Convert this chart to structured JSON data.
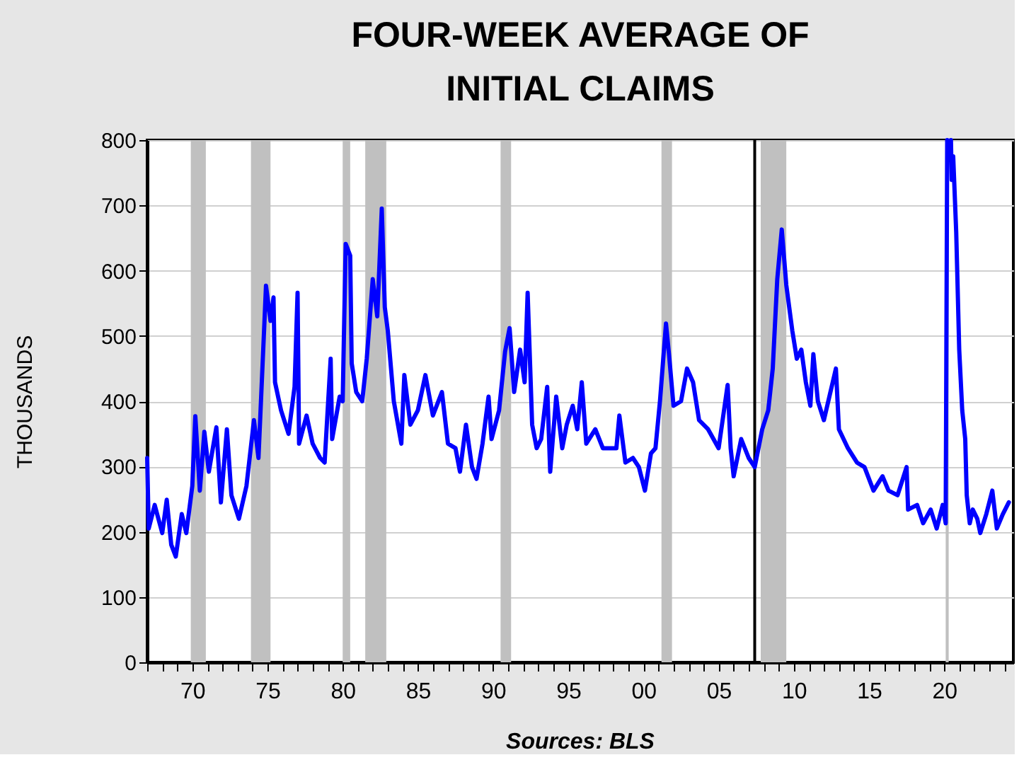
{
  "chart_data": {
    "type": "line",
    "title": "FOUR-WEEK AVERAGE OF\nINITIAL CLAIMS",
    "ylabel": "THOUSANDS",
    "annotations": [
      "Sources:  BLS"
    ],
    "x": [
      1967.0,
      1967.1,
      1967.5,
      1968.0,
      1968.3,
      1968.6,
      1968.9,
      1969.3,
      1969.6,
      1970.0,
      1970.2,
      1970.5,
      1970.8,
      1971.1,
      1971.6,
      1971.9,
      1972.3,
      1972.6,
      1973.1,
      1973.6,
      1974.1,
      1974.4,
      1974.8,
      1974.9,
      1975.2,
      1975.4,
      1975.5,
      1975.9,
      1976.4,
      1976.8,
      1977.0,
      1977.1,
      1977.6,
      1978.0,
      1978.5,
      1978.8,
      1979.2,
      1979.3,
      1979.8,
      1980.0,
      1980.2,
      1980.5,
      1980.6,
      1980.9,
      1981.3,
      1981.6,
      1982.0,
      1982.3,
      1982.6,
      1982.8,
      1983.0,
      1983.4,
      1983.9,
      1984.1,
      1984.5,
      1985.0,
      1985.5,
      1986.0,
      1986.6,
      1987.0,
      1987.5,
      1987.8,
      1988.2,
      1988.6,
      1988.9,
      1989.3,
      1989.7,
      1989.9,
      1990.4,
      1990.8,
      1991.1,
      1991.4,
      1991.8,
      1992.1,
      1992.3,
      1992.6,
      1992.9,
      1993.2,
      1993.6,
      1993.8,
      1994.2,
      1994.6,
      1994.9,
      1995.3,
      1995.6,
      1995.9,
      1996.2,
      1996.8,
      1997.3,
      1997.8,
      1998.2,
      1998.4,
      1998.8,
      1999.3,
      1999.7,
      2000.1,
      2000.5,
      2000.8,
      2001.1,
      2001.5,
      2001.7,
      2002.0,
      2002.5,
      2002.9,
      2003.3,
      2003.7,
      2004.3,
      2005.0,
      2005.6,
      2005.8,
      2006.0,
      2006.5,
      2007.0,
      2007.4,
      2007.9,
      2008.3,
      2008.6,
      2008.9,
      2009.2,
      2009.5,
      2009.9,
      2010.2,
      2010.5,
      2010.8,
      2011.1,
      2011.3,
      2011.6,
      2012.0,
      2012.8,
      2013.0,
      2013.6,
      2014.2,
      2014.7,
      2015.3,
      2015.9,
      2016.3,
      2016.9,
      2017.5,
      2017.6,
      2018.2,
      2018.6,
      2019.1,
      2019.5,
      2019.9,
      2020.1,
      2020.2,
      2020.3,
      2020.45,
      2020.5,
      2020.6,
      2020.8,
      2021.0,
      2021.2,
      2021.4,
      2021.5,
      2021.7,
      2021.9,
      2022.2,
      2022.4,
      2022.8,
      2023.2,
      2023.5,
      2023.9,
      2024.3
    ],
    "series": [
      {
        "color": "#0000ff",
        "values": [
          313,
          205,
          241,
          198,
          249,
          180,
          162,
          227,
          198,
          270,
          377,
          263,
          353,
          292,
          360,
          245,
          357,
          256,
          220,
          270,
          371,
          313,
          523,
          577,
          523,
          559,
          429,
          386,
          350,
          422,
          566,
          335,
          378,
          335,
          313,
          306,
          465,
          342,
          407,
          400,
          641,
          623,
          458,
          414,
          400,
          465,
          587,
          530,
          695,
          544,
          508,
          400,
          335,
          440,
          364,
          386,
          440,
          378,
          414,
          335,
          328,
          292,
          364,
          299,
          281,
          335,
          407,
          342,
          386,
          476,
          512,
          414,
          479,
          429,
          566,
          364,
          328,
          342,
          422,
          292,
          407,
          328,
          364,
          393,
          357,
          429,
          335,
          357,
          328,
          328,
          328,
          378,
          306,
          313,
          299,
          263,
          320,
          328,
          400,
          519,
          472,
          393,
          400,
          450,
          429,
          371,
          357,
          328,
          425,
          328,
          285,
          342,
          313,
          299,
          357,
          386,
          450,
          587,
          663,
          578,
          508,
          465,
          479,
          429,
          393,
          472,
          400,
          371,
          450,
          357,
          328,
          306,
          299,
          263,
          285,
          263,
          256,
          299,
          234,
          241,
          213,
          234,
          205,
          241,
          213,
          800,
          null,
          800,
          739,
          775,
          659,
          479,
          386,
          342,
          256,
          213,
          234,
          220,
          198,
          227,
          263,
          205,
          227,
          245
        ]
      }
    ],
    "xlim": [
      1967.0,
      2024.6
    ],
    "ylim": [
      0,
      800
    ],
    "yticks": [
      0,
      100,
      200,
      300,
      400,
      500,
      600,
      700,
      800
    ],
    "xticks": [
      {
        "value": 1967,
        "label": null
      },
      {
        "value": 1968,
        "label": null
      },
      {
        "value": 1969,
        "label": null
      },
      {
        "value": 1970,
        "label": "70"
      },
      {
        "value": 1971,
        "label": null
      },
      {
        "value": 1972,
        "label": null
      },
      {
        "value": 1973,
        "label": null
      },
      {
        "value": 1974,
        "label": null
      },
      {
        "value": 1975,
        "label": "75"
      },
      {
        "value": 1976,
        "label": null
      },
      {
        "value": 1977,
        "label": null
      },
      {
        "value": 1978,
        "label": null
      },
      {
        "value": 1979,
        "label": null
      },
      {
        "value": 1980,
        "label": "80"
      },
      {
        "value": 1981,
        "label": null
      },
      {
        "value": 1982,
        "label": null
      },
      {
        "value": 1983,
        "label": null
      },
      {
        "value": 1984,
        "label": null
      },
      {
        "value": 1985,
        "label": "85"
      },
      {
        "value": 1986,
        "label": null
      },
      {
        "value": 1987,
        "label": null
      },
      {
        "value": 1988,
        "label": null
      },
      {
        "value": 1989,
        "label": null
      },
      {
        "value": 1990,
        "label": "90"
      },
      {
        "value": 1991,
        "label": null
      },
      {
        "value": 1992,
        "label": null
      },
      {
        "value": 1993,
        "label": null
      },
      {
        "value": 1994,
        "label": null
      },
      {
        "value": 1995,
        "label": "95"
      },
      {
        "value": 1996,
        "label": null
      },
      {
        "value": 1997,
        "label": null
      },
      {
        "value": 1998,
        "label": null
      },
      {
        "value": 1999,
        "label": null
      },
      {
        "value": 2000,
        "label": "00"
      },
      {
        "value": 2001,
        "label": null
      },
      {
        "value": 2002,
        "label": null
      },
      {
        "value": 2003,
        "label": null
      },
      {
        "value": 2004,
        "label": null
      },
      {
        "value": 2005,
        "label": "05"
      },
      {
        "value": 2006,
        "label": null
      },
      {
        "value": 2007,
        "label": null
      },
      {
        "value": 2008,
        "label": null
      },
      {
        "value": 2009,
        "label": null
      },
      {
        "value": 2010,
        "label": "10"
      },
      {
        "value": 2011,
        "label": null
      },
      {
        "value": 2012,
        "label": null
      },
      {
        "value": 2013,
        "label": null
      },
      {
        "value": 2014,
        "label": null
      },
      {
        "value": 2015,
        "label": "15"
      },
      {
        "value": 2016,
        "label": null
      },
      {
        "value": 2017,
        "label": null
      },
      {
        "value": 2018,
        "label": null
      },
      {
        "value": 2019,
        "label": null
      },
      {
        "value": 2020,
        "label": "20"
      },
      {
        "value": 2021,
        "label": null
      },
      {
        "value": 2022,
        "label": null
      },
      {
        "value": 2023,
        "label": null
      },
      {
        "value": 2024,
        "label": null
      }
    ],
    "bands": [
      {
        "axis": "x",
        "from": 1969.9,
        "to": 1970.9,
        "color": "#c0c0c0"
      },
      {
        "axis": "x",
        "from": 1973.9,
        "to": 1975.2,
        "color": "#c0c0c0"
      },
      {
        "axis": "x",
        "from": 1980.0,
        "to": 1980.5,
        "color": "#c0c0c0"
      },
      {
        "axis": "x",
        "from": 1981.5,
        "to": 1982.9,
        "color": "#c0c0c0"
      },
      {
        "axis": "x",
        "from": 1990.5,
        "to": 1991.2,
        "color": "#c0c0c0"
      },
      {
        "axis": "x",
        "from": 2001.2,
        "to": 2001.9,
        "color": "#c0c0c0"
      },
      {
        "axis": "x",
        "from": 2007.8,
        "to": 2009.5,
        "color": "#c0c0c0"
      },
      {
        "axis": "x",
        "from": 2020.1,
        "to": 2020.3,
        "color": "#c0c0c0"
      }
    ],
    "ref_lines": [
      {
        "axis": "x",
        "value": 2007.4,
        "color": "#000000"
      }
    ],
    "grid": "y",
    "line_style": "solid",
    "marker": "none"
  }
}
